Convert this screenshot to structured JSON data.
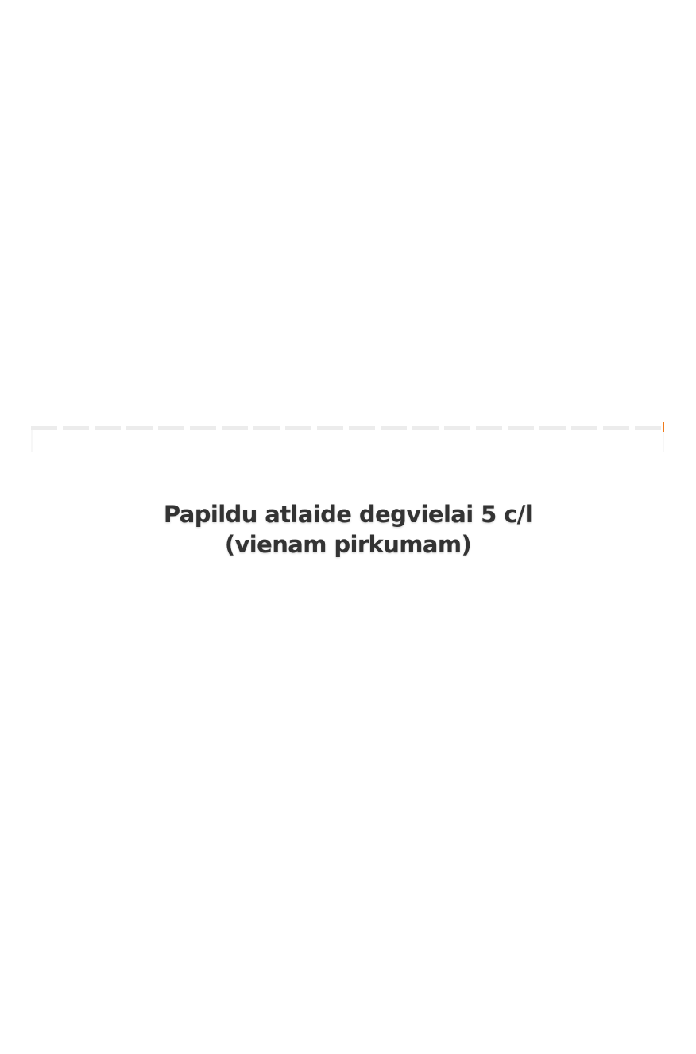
{
  "offer": {
    "title_line1": "Papildu atlaide degvielai 5 c/l",
    "title_line2": "(vienam pirkumam)"
  },
  "colors": {
    "accent": "#f07a1a",
    "divider": "#ececec",
    "text": "#333333"
  }
}
